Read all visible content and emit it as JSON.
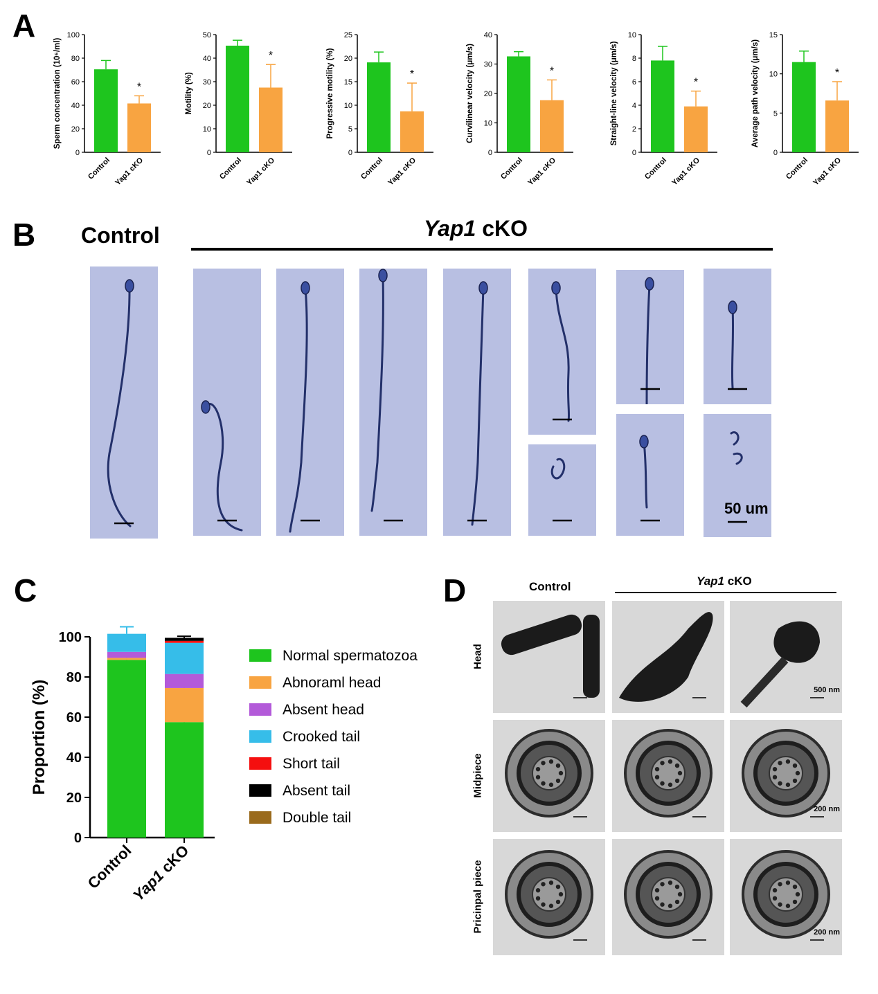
{
  "panels": {
    "a": "A",
    "b": "B",
    "c": "C",
    "d": "D"
  },
  "colors": {
    "control": "#1ec51e",
    "cko": "#f8a441",
    "micrograph_bg": "#b8bfe2",
    "tem_bg": "#d8d8d8"
  },
  "chart_data": [
    {
      "type": "bar",
      "categories": [
        "Control",
        "Yap1 cKO"
      ],
      "values": [
        70.5,
        41.5
      ],
      "errors": [
        7.5,
        6.5
      ],
      "ylabel": "Sperm concentration (10⁶/ml)",
      "ylim": [
        0,
        100
      ],
      "yticks": [
        0,
        20,
        40,
        60,
        80,
        100
      ],
      "significance": "*"
    },
    {
      "type": "bar",
      "categories": [
        "Control",
        "Yap1 cKO"
      ],
      "values": [
        45.3,
        27.5
      ],
      "errors": [
        2.3,
        9.8
      ],
      "ylabel": "Motility (%)",
      "ylim": [
        0,
        50
      ],
      "yticks": [
        0,
        10,
        20,
        30,
        40,
        50
      ],
      "significance": "*"
    },
    {
      "type": "bar",
      "categories": [
        "Control",
        "Yap1 cKO"
      ],
      "values": [
        19.1,
        8.7
      ],
      "errors": [
        2.2,
        6.0
      ],
      "ylabel": "Progressive motility (%)",
      "ylim": [
        0,
        25
      ],
      "yticks": [
        0,
        5,
        10,
        15,
        20,
        25
      ],
      "significance": "*"
    },
    {
      "type": "bar",
      "categories": [
        "Control",
        "Yap1 cKO"
      ],
      "values": [
        32.6,
        17.7
      ],
      "errors": [
        1.6,
        6.9
      ],
      "ylabel": "Curvilinear velocity (μm/s)",
      "ylim": [
        0,
        40
      ],
      "yticks": [
        0,
        10,
        20,
        30,
        40
      ],
      "significance": "*"
    },
    {
      "type": "bar",
      "categories": [
        "Control",
        "Yap1 cKO"
      ],
      "values": [
        7.8,
        3.9
      ],
      "errors": [
        1.2,
        1.3
      ],
      "ylabel": "Straight-line velocity (μm/s)",
      "ylim": [
        0,
        10
      ],
      "yticks": [
        0,
        2,
        4,
        6,
        8,
        10
      ],
      "significance": "*"
    },
    {
      "type": "bar",
      "categories": [
        "Control",
        "Yap1 cKO"
      ],
      "values": [
        11.5,
        6.6
      ],
      "errors": [
        1.4,
        2.4
      ],
      "ylabel": "Average path velocity (μm/s)",
      "ylim": [
        0,
        15
      ],
      "yticks": [
        0,
        5,
        10,
        15
      ],
      "significance": "*"
    },
    {
      "type": "bar",
      "stacked": true,
      "categories": [
        "Control",
        "Yap1 cKO"
      ],
      "ylabel": "Proportion (%)",
      "ylim": [
        0,
        100
      ],
      "yticks": [
        0,
        20,
        40,
        60,
        80,
        100
      ],
      "series": [
        {
          "name": "Normal spermatozoa",
          "color": "#1ec51e",
          "values": [
            88.5,
            57.5
          ],
          "errors": [
            1.5,
            2.0
          ]
        },
        {
          "name": "Abnoraml head",
          "color": "#f8a441",
          "values": [
            1.0,
            17.0
          ],
          "errors": [
            0,
            1.0
          ]
        },
        {
          "name": "Absent head",
          "color": "#b35ad9",
          "values": [
            3.0,
            7.0
          ],
          "errors": [
            0,
            0
          ]
        },
        {
          "name": "Crooked tail",
          "color": "#36bde9",
          "values": [
            9.0,
            15.5
          ],
          "errors": [
            3.5,
            0
          ]
        },
        {
          "name": "Short tail",
          "color": "#f50f0f",
          "values": [
            0,
            1.0
          ],
          "errors": [
            0,
            0
          ]
        },
        {
          "name": "Absent tail",
          "color": "#000000",
          "values": [
            0,
            1.5
          ],
          "errors": [
            0,
            0.8
          ]
        },
        {
          "name": "Double tail",
          "color": "#9a6a1c",
          "values": [
            0,
            0
          ],
          "errors": [
            0,
            0
          ]
        }
      ]
    }
  ],
  "panel_b": {
    "control_label": "Control",
    "cko_italic": "Yap1",
    "cko_rest": " cKO",
    "scale_label": "50 um"
  },
  "panel_d": {
    "control_label": "Control",
    "cko_italic": "Yap1",
    "cko_rest": " cKO",
    "rows": [
      "Head",
      "Midpiece",
      "Pricinpal piece"
    ],
    "scale_labels": [
      "500 nm",
      "200 nm",
      "200 nm"
    ]
  }
}
